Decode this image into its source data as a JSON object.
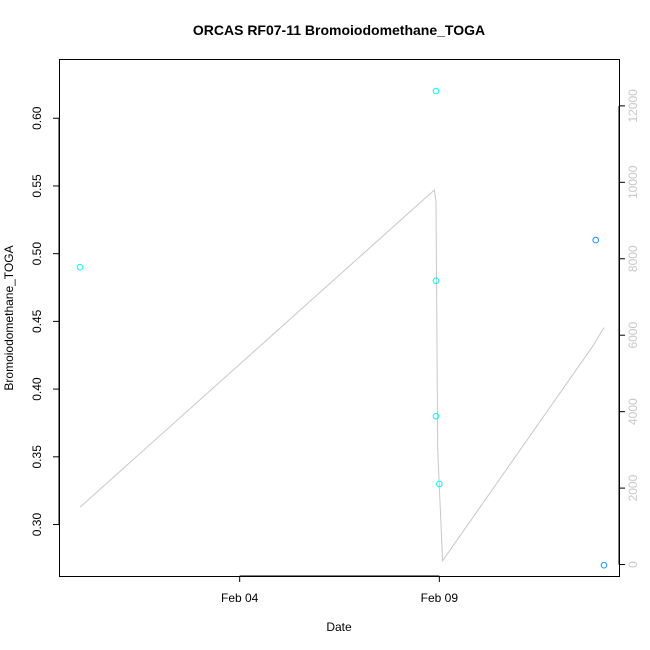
{
  "chart_data": {
    "type": "scatter",
    "title": "ORCAS RF07-11 Bromoiodomethane_TOGA",
    "xlabel": "Date",
    "ylabel": "Bromoiodomethane_TOGA",
    "x_tick_labels": [
      "Feb 04",
      "Feb 09"
    ],
    "x_ticks": [
      "2016-02-04",
      "2016-02-09"
    ],
    "xlim": [
      "2016-01-30T12:00",
      "2016-02-13T12:00"
    ],
    "ylim": [
      0.262,
      0.643
    ],
    "y_ticks": [
      0.3,
      0.35,
      0.4,
      0.45,
      0.5,
      0.55,
      0.6
    ],
    "y_tick_labels": [
      "0.30",
      "0.35",
      "0.40",
      "0.45",
      "0.50",
      "0.55",
      "0.60"
    ],
    "y2lim": [
      -300,
      13200
    ],
    "y2_ticks": [
      0,
      2000,
      4000,
      6000,
      8000,
      10000,
      12000
    ],
    "y2_tick_labels": [
      "0",
      "2000",
      "4000",
      "6000",
      "8000",
      "10000",
      "12000"
    ],
    "colors": {
      "points_light": "#00ffff",
      "points_dark": "#1e90ff",
      "secondary_line": "#c8c8c8",
      "axis": "#000000"
    },
    "series": [
      {
        "values": [
          {
            "x": "2016-01-31T00:00",
            "y": 0.49,
            "color": "light"
          },
          {
            "x": "2016-02-08T22:00",
            "y": 0.62,
            "color": "light"
          },
          {
            "x": "2016-02-08T22:00",
            "y": 0.48,
            "color": "light"
          },
          {
            "x": "2016-02-08T22:00",
            "y": 0.38,
            "color": "light"
          },
          {
            "x": "2016-02-09T00:00",
            "y": 0.33,
            "color": "light"
          },
          {
            "x": "2016-02-12T22:00",
            "y": 0.51,
            "color": "dark"
          },
          {
            "x": "2016-02-13T03:00",
            "y": 0.27,
            "color": "dark"
          }
        ]
      },
      {
        "axis": "right",
        "values": [
          {
            "x": "2016-01-31T00:00",
            "y": 1500
          },
          {
            "x": "2016-02-08T21:00",
            "y": 9800
          },
          {
            "x": "2016-02-08T22:00",
            "y": 9500
          },
          {
            "x": "2016-02-08T23:00",
            "y": 3000
          },
          {
            "x": "2016-02-09T02:00",
            "y": 100
          },
          {
            "x": "2016-02-12T20:00",
            "y": 5700
          },
          {
            "x": "2016-02-13T03:00",
            "y": 6200
          }
        ]
      }
    ]
  }
}
